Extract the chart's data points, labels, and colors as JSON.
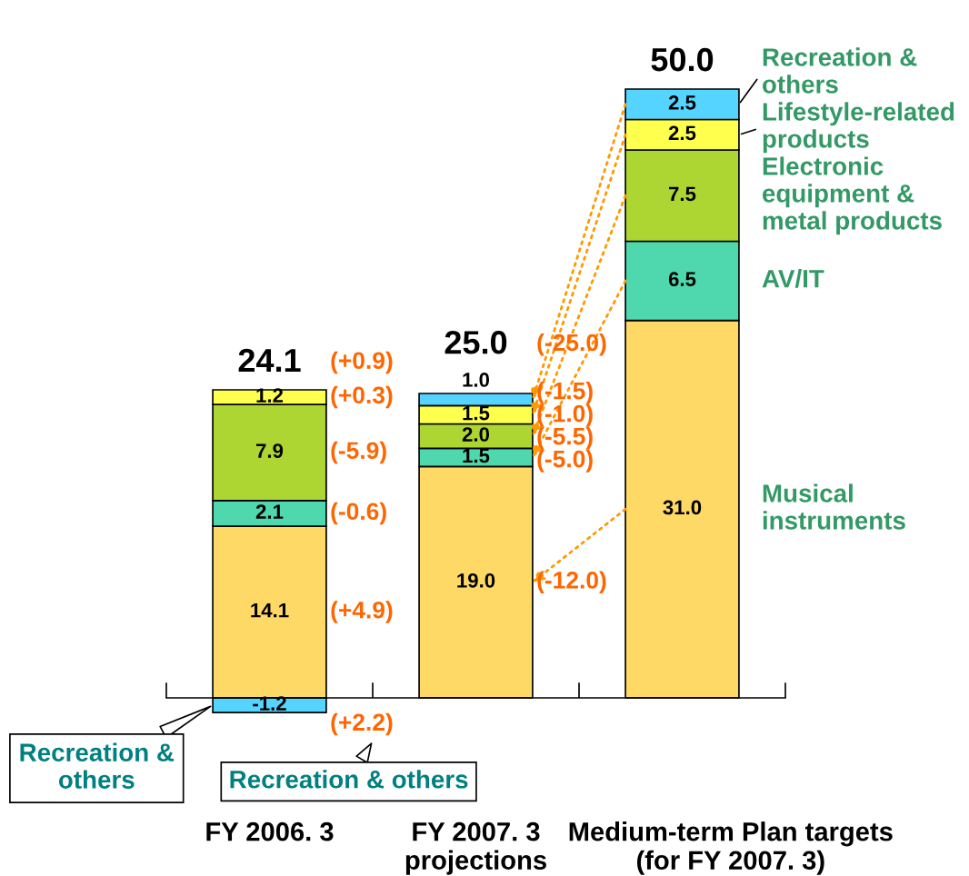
{
  "chart_data": {
    "type": "bar",
    "stacked": true,
    "legend": "right",
    "tick_labels": "x",
    "categories": [
      "FY 2006. 3",
      "FY 2007. 3\nprojections",
      "Medium-term Plan targets\n(for FY 2007. 3)"
    ],
    "series": [
      {
        "name": "Musical\ninstruments",
        "color": "#ffd966",
        "values": [
          14.1,
          19.0,
          31.0
        ],
        "value_labels": [
          "14.1",
          "19.0",
          "31.0"
        ]
      },
      {
        "name": "AV/IT",
        "color": "#4fd8ae",
        "values": [
          2.1,
          1.5,
          6.5
        ],
        "value_labels": [
          "2.1",
          "1.5",
          "6.5"
        ]
      },
      {
        "name": "Electronic\nequipment &\nmetal products",
        "color": "#add633",
        "values": [
          7.9,
          2.0,
          7.5
        ],
        "value_labels": [
          "7.9",
          "2.0",
          "7.5"
        ]
      },
      {
        "name": "Lifestyle-related\nproducts",
        "color": "#ffff4d",
        "values": [
          1.2,
          1.5,
          2.5
        ],
        "value_labels": [
          "1.2",
          "1.5",
          "2.5"
        ]
      },
      {
        "name": "Recreation &\nothers",
        "color": "#55d4ff",
        "values": [
          -1.2,
          1.0,
          2.5
        ],
        "value_labels": [
          "-1.2",
          "1.0",
          "2.5"
        ]
      }
    ],
    "totals": [
      "24.1",
      "25.0",
      "50.0"
    ],
    "annotations": [
      "(+0.9)",
      "(+0.3)",
      "(-5.9)",
      "(-0.6)",
      "(+4.9)",
      "(+2.2)",
      "(-25.0)",
      "(-1.5)",
      "(-1.0)",
      "(-5.5)",
      "(-5.0)",
      "(-12.0)",
      "Recreation & others"
    ]
  }
}
